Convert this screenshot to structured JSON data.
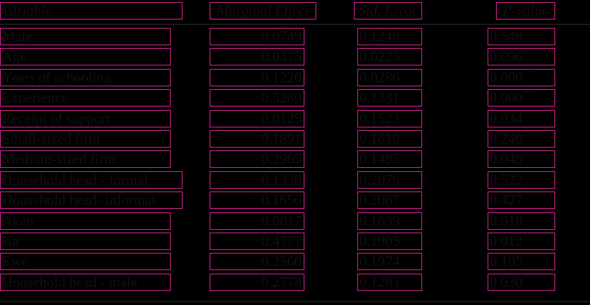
{
  "table": {
    "columns": [
      "Variable",
      "Marginal Effect",
      "Std. Error",
      "P-value"
    ],
    "rows": [
      {
        "variable": "Male",
        "effect": "0.0749",
        "se": "0.1248",
        "p": "0.548",
        "stars": ""
      },
      {
        "variable": "Age",
        "effect": "0.0375",
        "se": "0.0225",
        "p": "0.096",
        "stars": "*"
      },
      {
        "variable": "Years of schooling",
        "effect": "0.1220",
        "se": "0.0286",
        "p": "0.000",
        "stars": "***"
      },
      {
        "variable": "Experience",
        "effect": "−0.5280",
        "se": "0.1331",
        "p": "0.000",
        "stars": "***"
      },
      {
        "variable": "Receipt of support",
        "effect": "−0.0125",
        "se": "0.1523",
        "p": "0.934",
        "stars": ""
      },
      {
        "variable": "Small-sized firm",
        "effect": "−0.1891",
        "se": "0.1610",
        "p": "0.240",
        "stars": ""
      },
      {
        "variable": "Medium-sized firm",
        "effect": "−0.2965",
        "se": "0.1485",
        "p": "0.046",
        "stars": "**"
      },
      {
        "variable": "Household head - formal",
        "effect": "−0.1330",
        "se": "0.2076",
        "p": "0.522",
        "stars": ""
      },
      {
        "variable": "Household head- informal",
        "effect": "−0.1656",
        "se": "0.2087",
        "p": "0.427",
        "stars": ""
      },
      {
        "variable": "Akan",
        "effect": "−0.0817",
        "se": "0.1639",
        "p": "0.618",
        "stars": ""
      },
      {
        "variable": "Ga",
        "effect": "−0.4777",
        "se": "0.1905",
        "p": "0.012",
        "stars": "**"
      },
      {
        "variable": "Ewe",
        "effect": "−0.2560",
        "se": "0.1974",
        "p": "0.195",
        "stars": ""
      },
      {
        "variable": "Household head - male",
        "effect": "−0.2778",
        "se": "0.1283",
        "p": "0.030",
        "stars": "**"
      }
    ]
  }
}
